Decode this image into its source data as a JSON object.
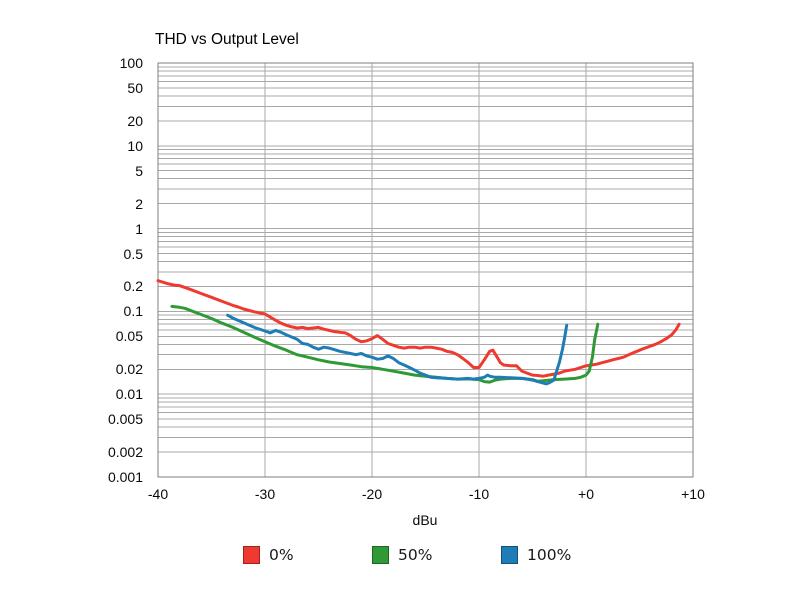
{
  "chart_data": {
    "type": "line",
    "title": "THD vs Output Level",
    "xlabel": "dBu",
    "ylabel": "",
    "legend_position": "bottom",
    "grid": "full log minor grid on, gray",
    "colors": {
      "background": "#ffffff",
      "grid": "#a8a8a8",
      "border": "#7f7f7f",
      "text": "#0a0a0a"
    },
    "x_axis": {
      "min": -40,
      "max": 10,
      "tick_values": [
        -40,
        -30,
        -20,
        -10,
        0,
        10
      ],
      "tick_labels": [
        "-40",
        "-30",
        "-20",
        "-10",
        "+0",
        "+10"
      ]
    },
    "y_axis": {
      "scale": "log",
      "min": 0.001,
      "max": 100,
      "tick_values": [
        100,
        50,
        20,
        10,
        5,
        2,
        1,
        0.5,
        0.2,
        0.1,
        0.05,
        0.02,
        0.01,
        0.005,
        0.002,
        0.001
      ],
      "tick_labels": [
        "100",
        "50",
        "20",
        "10",
        "5",
        "2",
        "1",
        "0.5",
        "0.2",
        "0.1",
        "0.05",
        "0.02",
        "0.01",
        "0.005",
        "0.002",
        "0.001"
      ]
    },
    "series": [
      {
        "name": "0%",
        "color": "#ee3a2f",
        "points": [
          [
            -40,
            0.235
          ],
          [
            -39,
            0.215
          ],
          [
            -38.5,
            0.208
          ],
          [
            -38,
            0.205
          ],
          [
            -37,
            0.185
          ],
          [
            -36,
            0.165
          ],
          [
            -35,
            0.148
          ],
          [
            -34,
            0.132
          ],
          [
            -33,
            0.118
          ],
          [
            -32.5,
            0.113
          ],
          [
            -32,
            0.107
          ],
          [
            -31,
            0.099
          ],
          [
            -30,
            0.093
          ],
          [
            -29.5,
            0.085
          ],
          [
            -29,
            0.078
          ],
          [
            -28.5,
            0.072
          ],
          [
            -28,
            0.068
          ],
          [
            -27.5,
            0.065
          ],
          [
            -27,
            0.063
          ],
          [
            -26.5,
            0.064
          ],
          [
            -26,
            0.062
          ],
          [
            -25.5,
            0.063
          ],
          [
            -25,
            0.064
          ],
          [
            -24.5,
            0.061
          ],
          [
            -24,
            0.059
          ],
          [
            -23.5,
            0.057
          ],
          [
            -23,
            0.056
          ],
          [
            -22.5,
            0.055
          ],
          [
            -22,
            0.051
          ],
          [
            -21.5,
            0.046
          ],
          [
            -21,
            0.043
          ],
          [
            -20.5,
            0.044
          ],
          [
            -20,
            0.047
          ],
          [
            -19.5,
            0.051
          ],
          [
            -19,
            0.046
          ],
          [
            -18.5,
            0.041
          ],
          [
            -18,
            0.039
          ],
          [
            -17.5,
            0.037
          ],
          [
            -17,
            0.036
          ],
          [
            -16.5,
            0.037
          ],
          [
            -16,
            0.037
          ],
          [
            -15.5,
            0.036
          ],
          [
            -15,
            0.037
          ],
          [
            -14.5,
            0.037
          ],
          [
            -14,
            0.036
          ],
          [
            -13.5,
            0.035
          ],
          [
            -13,
            0.033
          ],
          [
            -12.5,
            0.032
          ],
          [
            -12,
            0.03
          ],
          [
            -11.5,
            0.027
          ],
          [
            -11,
            0.024
          ],
          [
            -10.5,
            0.021
          ],
          [
            -10,
            0.021
          ],
          [
            -9.5,
            0.026
          ],
          [
            -9,
            0.033
          ],
          [
            -8.7,
            0.034
          ],
          [
            -8.3,
            0.028
          ],
          [
            -8,
            0.024
          ],
          [
            -7.7,
            0.0225
          ],
          [
            -7,
            0.022
          ],
          [
            -6.5,
            0.022
          ],
          [
            -6,
            0.019
          ],
          [
            -5.5,
            0.018
          ],
          [
            -5,
            0.017
          ],
          [
            -4.5,
            0.0168
          ],
          [
            -4,
            0.0165
          ],
          [
            -3.5,
            0.017
          ],
          [
            -3,
            0.0175
          ],
          [
            -2.5,
            0.018
          ],
          [
            -2,
            0.019
          ],
          [
            -1.5,
            0.0195
          ],
          [
            -1,
            0.02
          ],
          [
            -0.5,
            0.021
          ],
          [
            0,
            0.022
          ],
          [
            0.5,
            0.0225
          ],
          [
            1,
            0.023
          ],
          [
            1.5,
            0.024
          ],
          [
            2,
            0.025
          ],
          [
            2.5,
            0.026
          ],
          [
            3,
            0.027
          ],
          [
            3.5,
            0.028
          ],
          [
            4,
            0.03
          ],
          [
            4.5,
            0.032
          ],
          [
            5,
            0.034
          ],
          [
            5.5,
            0.036
          ],
          [
            6,
            0.038
          ],
          [
            6.5,
            0.04
          ],
          [
            7,
            0.043
          ],
          [
            7.5,
            0.047
          ],
          [
            8,
            0.052
          ],
          [
            8.4,
            0.06
          ],
          [
            8.7,
            0.07
          ]
        ]
      },
      {
        "name": "50%",
        "color": "#2f9a35",
        "points": [
          [
            -38.7,
            0.115
          ],
          [
            -38,
            0.112
          ],
          [
            -37.5,
            0.109
          ],
          [
            -37,
            0.103
          ],
          [
            -36,
            0.092
          ],
          [
            -35,
            0.082
          ],
          [
            -34,
            0.072
          ],
          [
            -33,
            0.064
          ],
          [
            -32,
            0.056
          ],
          [
            -31,
            0.049
          ],
          [
            -30,
            0.043
          ],
          [
            -29,
            0.038
          ],
          [
            -28,
            0.034
          ],
          [
            -27,
            0.03
          ],
          [
            -26,
            0.028
          ],
          [
            -25,
            0.026
          ],
          [
            -24,
            0.0245
          ],
          [
            -23,
            0.0235
          ],
          [
            -22,
            0.0225
          ],
          [
            -21,
            0.0215
          ],
          [
            -20,
            0.021
          ],
          [
            -19,
            0.02
          ],
          [
            -18,
            0.019
          ],
          [
            -17,
            0.018
          ],
          [
            -16,
            0.017
          ],
          [
            -15,
            0.0165
          ],
          [
            -14,
            0.016
          ],
          [
            -13,
            0.0155
          ],
          [
            -12,
            0.0152
          ],
          [
            -11,
            0.0153
          ],
          [
            -10,
            0.015
          ],
          [
            -9.5,
            0.0142
          ],
          [
            -9,
            0.014
          ],
          [
            -8.5,
            0.0148
          ],
          [
            -8,
            0.0152
          ],
          [
            -7,
            0.0155
          ],
          [
            -6,
            0.0155
          ],
          [
            -5,
            0.015
          ],
          [
            -4.5,
            0.0143
          ],
          [
            -4,
            0.0145
          ],
          [
            -3,
            0.015
          ],
          [
            -2,
            0.0152
          ],
          [
            -1,
            0.0155
          ],
          [
            -0.5,
            0.016
          ],
          [
            0,
            0.017
          ],
          [
            0.3,
            0.019
          ],
          [
            0.6,
            0.028
          ],
          [
            0.8,
            0.045
          ],
          [
            1,
            0.06
          ],
          [
            1.1,
            0.07
          ]
        ]
      },
      {
        "name": "100%",
        "color": "#1e7db6",
        "points": [
          [
            -33.5,
            0.09
          ],
          [
            -33,
            0.083
          ],
          [
            -32,
            0.073
          ],
          [
            -31,
            0.064
          ],
          [
            -30,
            0.058
          ],
          [
            -29.5,
            0.055
          ],
          [
            -29,
            0.059
          ],
          [
            -28.5,
            0.056
          ],
          [
            -28,
            0.052
          ],
          [
            -27,
            0.046
          ],
          [
            -26.5,
            0.041
          ],
          [
            -26,
            0.04
          ],
          [
            -25.5,
            0.037
          ],
          [
            -25,
            0.035
          ],
          [
            -24.5,
            0.037
          ],
          [
            -24,
            0.036
          ],
          [
            -23,
            0.033
          ],
          [
            -22,
            0.031
          ],
          [
            -21.5,
            0.03
          ],
          [
            -21,
            0.031
          ],
          [
            -20.5,
            0.029
          ],
          [
            -20,
            0.028
          ],
          [
            -19.5,
            0.0265
          ],
          [
            -19,
            0.027
          ],
          [
            -18.5,
            0.029
          ],
          [
            -18,
            0.027
          ],
          [
            -17.5,
            0.024
          ],
          [
            -17,
            0.0225
          ],
          [
            -16.5,
            0.021
          ],
          [
            -16,
            0.0195
          ],
          [
            -15.5,
            0.018
          ],
          [
            -15,
            0.017
          ],
          [
            -14.5,
            0.016
          ],
          [
            -14,
            0.0158
          ],
          [
            -13,
            0.0155
          ],
          [
            -12,
            0.0152
          ],
          [
            -11,
            0.0155
          ],
          [
            -10.5,
            0.0152
          ],
          [
            -10,
            0.0155
          ],
          [
            -9.5,
            0.016
          ],
          [
            -9.2,
            0.017
          ],
          [
            -9,
            0.0165
          ],
          [
            -8.5,
            0.016
          ],
          [
            -8,
            0.016
          ],
          [
            -7,
            0.0158
          ],
          [
            -6,
            0.0155
          ],
          [
            -5.5,
            0.0152
          ],
          [
            -5,
            0.0148
          ],
          [
            -4.5,
            0.0142
          ],
          [
            -4,
            0.0136
          ],
          [
            -3.7,
            0.0133
          ],
          [
            -3.4,
            0.0138
          ],
          [
            -3,
            0.0148
          ],
          [
            -2.8,
            0.018
          ],
          [
            -2.5,
            0.024
          ],
          [
            -2.2,
            0.035
          ],
          [
            -2,
            0.048
          ],
          [
            -1.8,
            0.068
          ]
        ]
      }
    ]
  }
}
